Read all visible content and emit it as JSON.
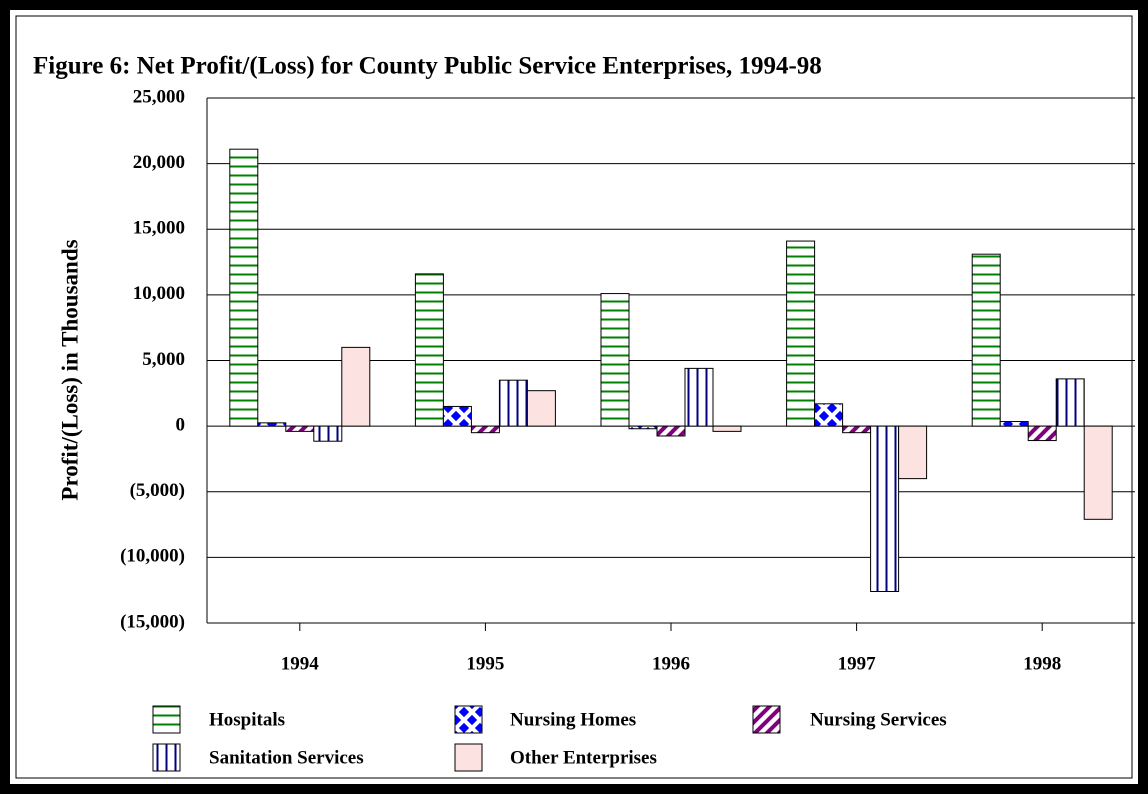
{
  "chart_data": {
    "type": "bar",
    "title": "Figure 6:  Net Profit/(Loss) for County Public Service Enterprises, 1994-98",
    "y_label": "Profit/(Loss) in Thousands",
    "categories": [
      "1994",
      "1995",
      "1996",
      "1997",
      "1998"
    ],
    "series": [
      {
        "name": "Hospitals",
        "color": "#008000",
        "pattern": "horizontal",
        "values": [
          21100,
          11600,
          10100,
          14100,
          13100
        ]
      },
      {
        "name": "Nursing Homes",
        "color": "#0000ff",
        "pattern": "cross",
        "values": [
          250,
          1500,
          -200,
          1700,
          350
        ]
      },
      {
        "name": "Nursing Services",
        "color": "#800080",
        "pattern": "diagonal",
        "values": [
          -400,
          -500,
          -750,
          -500,
          -1100
        ]
      },
      {
        "name": "Sanitation Services",
        "color": "#000080",
        "pattern": "vertical",
        "values": [
          -1150,
          3500,
          4400,
          -12600,
          3600
        ]
      },
      {
        "name": "Other Enterprises",
        "color": "#fde2e2",
        "pattern": "solid",
        "values": [
          6000,
          2700,
          -400,
          -4000,
          -7100
        ]
      }
    ],
    "ylim": [
      -15000,
      25000
    ],
    "yticks": [
      {
        "value": -15000,
        "label": "(15,000)"
      },
      {
        "value": -10000,
        "label": "(10,000)"
      },
      {
        "value": -5000,
        "label": "(5,000)"
      },
      0,
      {
        "value": 5000,
        "label": "5,000"
      },
      {
        "value": 10000,
        "label": "10,000"
      },
      {
        "value": 15000,
        "label": "15,000"
      },
      {
        "value": 20000,
        "label": "20,000"
      },
      {
        "value": 25000,
        "label": "25,000"
      }
    ],
    "grid": true,
    "legend": "bottom"
  }
}
